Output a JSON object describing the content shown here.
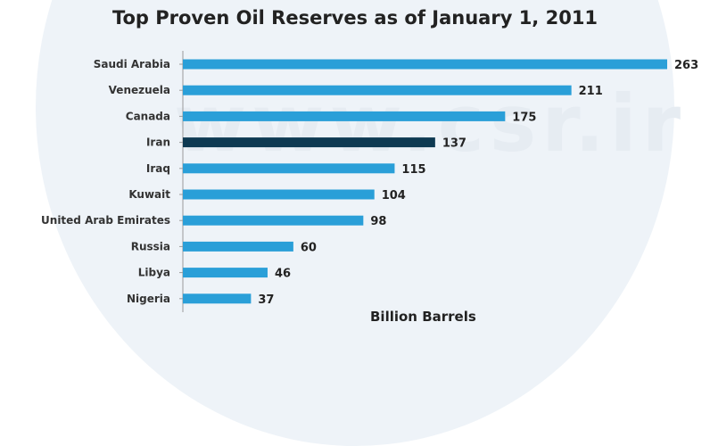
{
  "watermark": "www.csr.ir",
  "chart_data": {
    "type": "bar",
    "orientation": "horizontal",
    "title": "Top Proven Oil Reserves as of January 1, 2011",
    "xlabel": "Billion Barrels",
    "ylabel": "",
    "categories": [
      "Saudi Arabia",
      "Venezuela",
      "Canada",
      "Iran",
      "Iraq",
      "Kuwait",
      "United Arab Emirates",
      "Russia",
      "Libya",
      "Nigeria"
    ],
    "values": [
      263,
      211,
      175,
      137,
      115,
      104,
      98,
      60,
      46,
      37
    ],
    "xlim": [
      0,
      263
    ],
    "grid": false,
    "legend": "none",
    "bar_colors": [
      "#2a9fd8",
      "#2a9fd8",
      "#2a9fd8",
      "#0e3a52",
      "#2a9fd8",
      "#2a9fd8",
      "#2a9fd8",
      "#2a9fd8",
      "#2a9fd8",
      "#2a9fd8"
    ],
    "axis_color": "#9a9a9a"
  }
}
